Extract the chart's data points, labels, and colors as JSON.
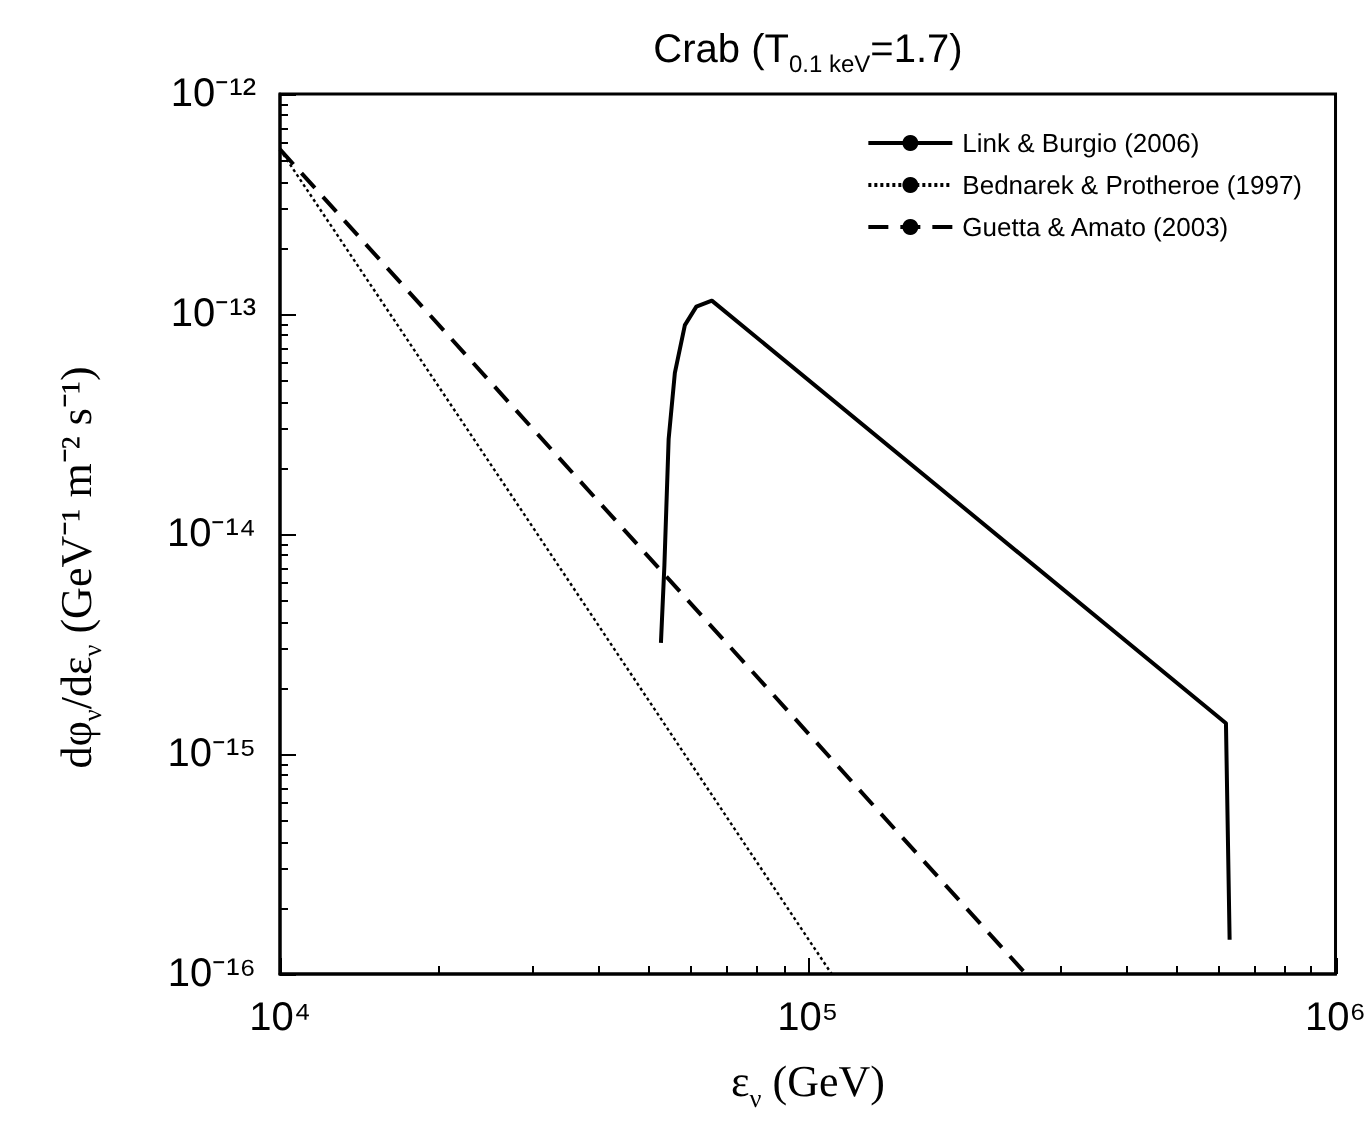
{
  "chart_data": {
    "type": "line",
    "title": "Crab (T$_{0.1 keV}$=1.7)",
    "xlabel": "ε$_{ν}$ (GeV)",
    "ylabel": "dφ$_{ν}$/dε$_{ν}$ (GeV⁻¹ m⁻² s⁻¹)",
    "log": "xy",
    "xlim": [
      10000,
      1000000
    ],
    "ylim": [
      1e-16,
      1e-12
    ],
    "xticks": [
      {
        "value": 10000,
        "label": "10⁴"
      },
      {
        "value": 100000,
        "label": "10⁵"
      },
      {
        "value": 1000000,
        "label": "10⁶"
      }
    ],
    "yticks": [
      {
        "value": 1e-16,
        "label": "10⁻¹⁶"
      },
      {
        "value": 1e-15,
        "label": "10⁻¹⁵"
      },
      {
        "value": 1e-14,
        "label": "10⁻¹⁴"
      },
      {
        "value": 1e-13,
        "label": "10⁻¹³"
      },
      {
        "value": 1e-12,
        "label": "10⁻¹²"
      }
    ],
    "grid": false,
    "legend": "top right",
    "marker": "none",
    "series": [
      {
        "name": "Link & Burgio (2006)",
        "color": "#000000",
        "line_style": "solid",
        "x": [
          52700,
          53500,
          54500,
          56000,
          58500,
          61500,
          65800,
          620000,
          630000
        ],
        "values": [
          3.2e-15,
          7.2e-15,
          2.7e-14,
          5.4e-14,
          8.9e-14,
          1.08e-13,
          1.15e-13,
          1.38e-15,
          1.43e-16
        ]
      },
      {
        "name": "Bednarek & Protheroe (1997)",
        "color": "#000000",
        "line_style": "dotted",
        "x": [
          10000,
          111000
        ],
        "values": [
          5.6e-13,
          1e-16
        ]
      },
      {
        "name": "Guetta & Amato (2003)",
        "color": "#000000",
        "line_style": "dashed",
        "x": [
          10000,
          259000
        ],
        "values": [
          5.6e-13,
          1e-16
        ]
      }
    ]
  }
}
